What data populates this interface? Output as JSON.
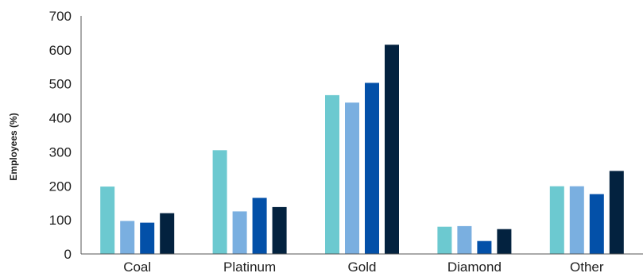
{
  "chart_data": {
    "type": "bar",
    "ylabel": "Employees (%)",
    "xlabel": "",
    "title": "",
    "ylim": [
      0,
      700
    ],
    "yticks": [
      0,
      100,
      200,
      300,
      400,
      500,
      600,
      700
    ],
    "categories": [
      "Coal",
      "Platinum",
      "Gold",
      "Diamond",
      "Other"
    ],
    "grid": false,
    "legend": "none",
    "series": [
      {
        "color": "#6cc9d0",
        "values": [
          198,
          305,
          467,
          80,
          199
        ]
      },
      {
        "color": "#7aafe0",
        "values": [
          97,
          125,
          445,
          82,
          199
        ]
      },
      {
        "color": "#0350a8",
        "values": [
          92,
          165,
          503,
          38,
          176
        ]
      },
      {
        "color": "#03223f",
        "values": [
          120,
          138,
          615,
          73,
          244
        ]
      }
    ]
  }
}
